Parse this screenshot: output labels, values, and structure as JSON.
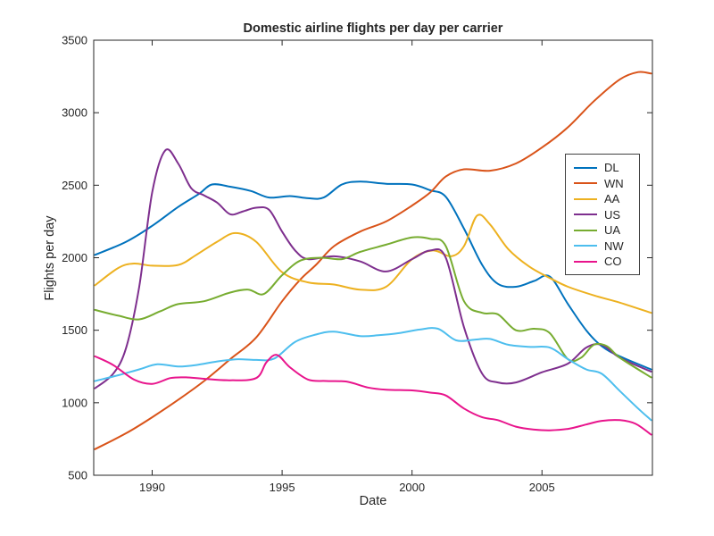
{
  "chart_data": {
    "type": "line",
    "title": "Domestic airline flights per day per carrier",
    "xlabel": "Date",
    "ylabel": "Flights per day",
    "xlim": [
      1987.75,
      2009.25
    ],
    "ylim": [
      500,
      3500
    ],
    "xticks": [
      1990,
      1995,
      2000,
      2005
    ],
    "yticks": [
      500,
      1000,
      1500,
      2000,
      2500,
      3000,
      3500
    ],
    "grid": false,
    "legend_position": "right-inside",
    "axis_color": "#262626",
    "background": "#ffffff",
    "series": [
      {
        "name": "DL",
        "color": "#0072bd",
        "x": [
          1987.8,
          1989,
          1990,
          1991,
          1991.8,
          1992.3,
          1993,
          1993.8,
          1994.5,
          1995.3,
          1996,
          1996.6,
          1997.3,
          1998,
          1999,
          2000,
          2000.7,
          2001.3,
          2002,
          2002.7,
          2003.3,
          2004,
          2004.7,
          2005.3,
          2006,
          2006.7,
          2007.3,
          2008,
          2009.2
        ],
        "y": [
          2020,
          2110,
          2220,
          2350,
          2440,
          2505,
          2490,
          2460,
          2415,
          2425,
          2410,
          2415,
          2505,
          2525,
          2510,
          2505,
          2465,
          2420,
          2200,
          1950,
          1820,
          1800,
          1840,
          1870,
          1680,
          1500,
          1390,
          1320,
          1230
        ]
      },
      {
        "name": "WN",
        "color": "#d95319",
        "x": [
          1987.8,
          1989,
          1990,
          1991,
          1992,
          1993,
          1994,
          1995,
          1995.7,
          1996.3,
          1997,
          1998,
          1999,
          2000,
          2000.7,
          2001.3,
          2002,
          2003,
          2004,
          2005,
          2006,
          2007,
          2008,
          2008.7,
          2009.2
        ],
        "y": [
          680,
          790,
          900,
          1020,
          1150,
          1300,
          1450,
          1700,
          1850,
          1950,
          2080,
          2180,
          2250,
          2360,
          2450,
          2560,
          2610,
          2600,
          2650,
          2760,
          2900,
          3080,
          3230,
          3280,
          3270
        ]
      },
      {
        "name": "AA",
        "color": "#edb120",
        "x": [
          1987.8,
          1988.7,
          1989.3,
          1990,
          1991,
          1991.7,
          1992.5,
          1993.2,
          1994,
          1995,
          1996,
          1997,
          1998,
          1999,
          2000,
          2000.8,
          2001.5,
          2002,
          2002.5,
          2003,
          2003.7,
          2004.5,
          2005.3,
          2006,
          2007,
          2008,
          2009.2
        ],
        "y": [
          1810,
          1930,
          1960,
          1945,
          1950,
          2020,
          2110,
          2170,
          2110,
          1900,
          1830,
          1815,
          1780,
          1800,
          1990,
          2050,
          2010,
          2080,
          2290,
          2230,
          2060,
          1940,
          1860,
          1800,
          1740,
          1690,
          1620
        ]
      },
      {
        "name": "US",
        "color": "#7e2f8e",
        "x": [
          1987.8,
          1988.5,
          1989,
          1989.5,
          1990,
          1990.5,
          1991,
          1991.5,
          1992,
          1992.5,
          1993,
          1993.5,
          1994,
          1994.5,
          1995,
          1995.5,
          1996,
          1997,
          1998,
          1999,
          2000,
          2000.7,
          2001.3,
          2002,
          2002.7,
          2003.3,
          2004,
          2005,
          2006,
          2006.7,
          2007.3,
          2008,
          2009.2
        ],
        "y": [
          1100,
          1200,
          1380,
          1800,
          2450,
          2740,
          2650,
          2480,
          2430,
          2380,
          2300,
          2320,
          2345,
          2330,
          2180,
          2050,
          1990,
          2010,
          1975,
          1905,
          1990,
          2050,
          2000,
          1520,
          1200,
          1140,
          1140,
          1210,
          1270,
          1380,
          1400,
          1310,
          1215
        ]
      },
      {
        "name": "UA",
        "color": "#77ac30",
        "x": [
          1987.8,
          1988.7,
          1989.5,
          1990.3,
          1991,
          1992,
          1993,
          1993.7,
          1994.3,
          1995,
          1995.7,
          1996.5,
          1997.3,
          1998,
          1999,
          2000,
          2000.7,
          2001.3,
          2002,
          2002.7,
          2003.3,
          2004,
          2004.7,
          2005.3,
          2006,
          2006.5,
          2007,
          2007.5,
          2008,
          2009.2
        ],
        "y": [
          1640,
          1600,
          1575,
          1630,
          1680,
          1700,
          1760,
          1780,
          1750,
          1880,
          1980,
          2000,
          1990,
          2040,
          2090,
          2140,
          2130,
          2080,
          1700,
          1620,
          1610,
          1500,
          1510,
          1480,
          1300,
          1310,
          1400,
          1390,
          1310,
          1175
        ]
      },
      {
        "name": "NW",
        "color": "#4dbeee",
        "x": [
          1987.8,
          1988.7,
          1989.5,
          1990.2,
          1991,
          1991.7,
          1992.5,
          1993.3,
          1994,
          1994.7,
          1995.5,
          1996.3,
          1997,
          1998,
          1998.7,
          1999.5,
          2000.3,
          2001,
          2001.7,
          2002.4,
          2003,
          2003.7,
          2004.5,
          2005.3,
          2006,
          2006.7,
          2007.3,
          2008,
          2008.7,
          2009.2
        ],
        "y": [
          1150,
          1190,
          1230,
          1265,
          1250,
          1260,
          1285,
          1300,
          1295,
          1305,
          1420,
          1470,
          1490,
          1460,
          1465,
          1480,
          1505,
          1510,
          1430,
          1435,
          1440,
          1400,
          1385,
          1380,
          1300,
          1230,
          1200,
          1080,
          960,
          880
        ]
      },
      {
        "name": "CO",
        "color": "#e8148c",
        "x": [
          1987.8,
          1988.5,
          1989.3,
          1990,
          1990.7,
          1991.3,
          1992,
          1993,
          1994,
          1994.4,
          1994.8,
          1995.3,
          1996,
          1996.7,
          1997.5,
          1998.3,
          1999,
          2000,
          2000.7,
          2001.3,
          2002,
          2002.7,
          2003.3,
          2004,
          2004.7,
          2005.3,
          2006,
          2006.7,
          2007.3,
          2008,
          2008.6,
          2009.2
        ],
        "y": [
          1320,
          1260,
          1160,
          1130,
          1170,
          1175,
          1165,
          1155,
          1170,
          1280,
          1330,
          1245,
          1160,
          1150,
          1145,
          1105,
          1090,
          1085,
          1070,
          1050,
          960,
          900,
          880,
          835,
          815,
          810,
          820,
          850,
          875,
          880,
          855,
          780
        ]
      }
    ]
  }
}
